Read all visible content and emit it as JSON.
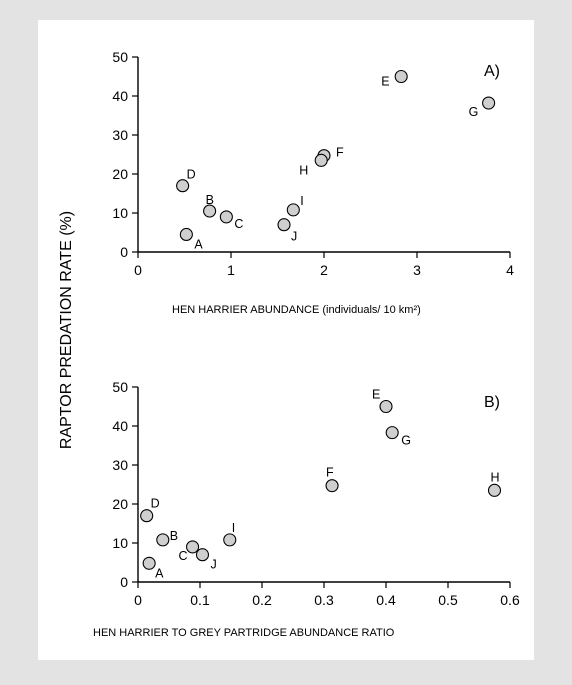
{
  "ylabel_shared": "RAPTOR PREDATION RATE (%)",
  "chart_data": [
    {
      "type": "scatter",
      "panel_label": "A)",
      "xlabel": "HEN HARRIER ABUNDANCE (individuals/ 10 km²)",
      "ylabel": "RAPTOR PREDATION RATE (%)",
      "xlim": [
        0,
        4
      ],
      "ylim": [
        0,
        50
      ],
      "xticks": [
        "0",
        "1",
        "2",
        "3",
        "4"
      ],
      "yticks": [
        "0",
        "10",
        "20",
        "30",
        "40",
        "50"
      ],
      "points": [
        {
          "label": "A",
          "x": 0.52,
          "y": 4.5
        },
        {
          "label": "B",
          "x": 0.77,
          "y": 10.5
        },
        {
          "label": "C",
          "x": 0.95,
          "y": 9.0
        },
        {
          "label": "D",
          "x": 0.48,
          "y": 17.0
        },
        {
          "label": "E",
          "x": 2.83,
          "y": 45.0
        },
        {
          "label": "F",
          "x": 2.0,
          "y": 24.7
        },
        {
          "label": "G",
          "x": 3.77,
          "y": 38.2
        },
        {
          "label": "H",
          "x": 1.97,
          "y": 23.5
        },
        {
          "label": "I",
          "x": 1.67,
          "y": 10.8
        },
        {
          "label": "J",
          "x": 1.57,
          "y": 7.0
        }
      ]
    },
    {
      "type": "scatter",
      "panel_label": "B)",
      "xlabel": "HEN HARRIER TO GREY PARTRIDGE ABUNDANCE RATIO",
      "ylabel": "RAPTOR PREDATION RATE (%)",
      "xlim": [
        0,
        0.6
      ],
      "ylim": [
        0,
        50
      ],
      "xticks": [
        "0",
        "0.1",
        "0.2",
        "0.3",
        "0.4",
        "0.5",
        "0.6"
      ],
      "yticks": [
        "0",
        "10",
        "20",
        "30",
        "40",
        "50"
      ],
      "points": [
        {
          "label": "A",
          "x": 0.018,
          "y": 4.8
        },
        {
          "label": "B",
          "x": 0.04,
          "y": 10.8
        },
        {
          "label": "C",
          "x": 0.088,
          "y": 9.0
        },
        {
          "label": "D",
          "x": 0.014,
          "y": 17.0
        },
        {
          "label": "E",
          "x": 0.4,
          "y": 45.0
        },
        {
          "label": "F",
          "x": 0.313,
          "y": 24.7
        },
        {
          "label": "G",
          "x": 0.41,
          "y": 38.3
        },
        {
          "label": "H",
          "x": 0.575,
          "y": 23.5
        },
        {
          "label": "I",
          "x": 0.148,
          "y": 10.8
        },
        {
          "label": "J",
          "x": 0.104,
          "y": 7.0
        }
      ]
    }
  ]
}
